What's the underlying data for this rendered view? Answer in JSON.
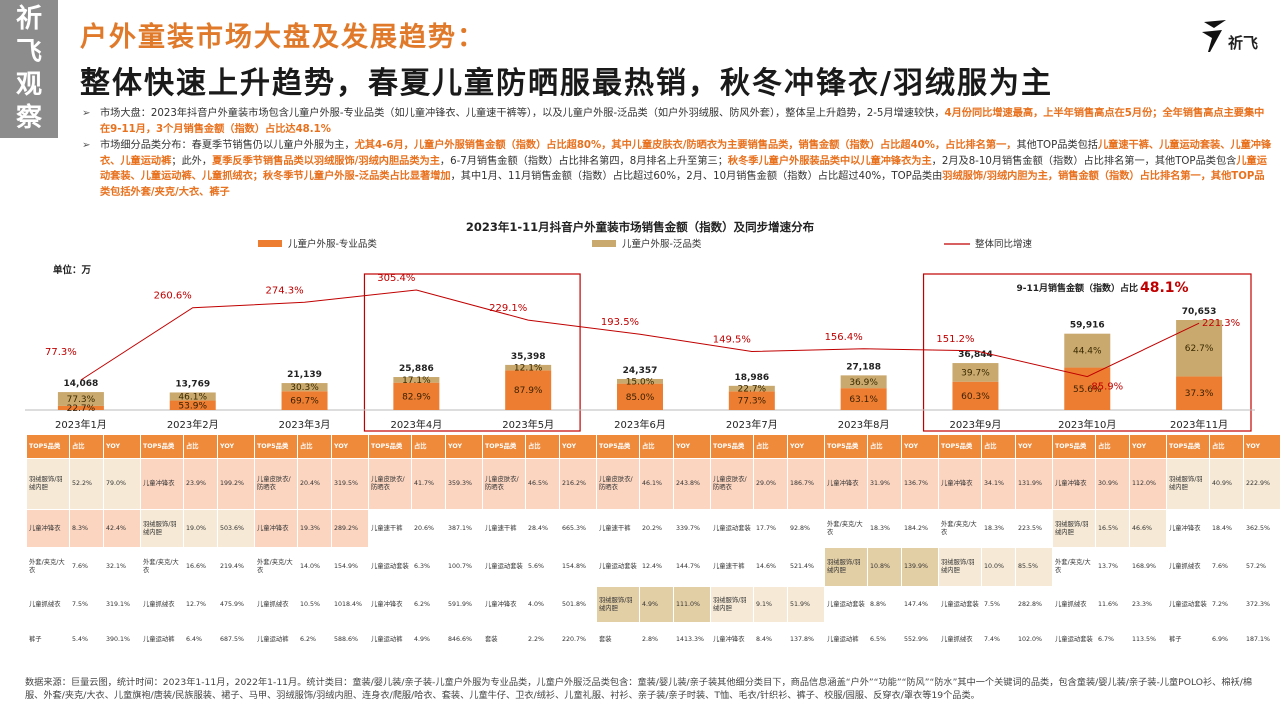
{
  "seal": [
    "祈",
    "飞",
    "观",
    "察"
  ],
  "logo_text": "祈飞",
  "title_line1": "户外童装市场大盘及发展趋势：",
  "title_line2": "整体快速上升趋势，春夏儿童防晒服最热销，秋冬冲锋衣/羽绒服为主",
  "bullets": [
    [
      {
        "t": "市场大盘：2023年抖音户外童装市场包含儿童户外服-专业品类（如儿童冲锋衣、儿童速干裤等），以及儿童户外服-泛品类（如户外羽绒服、防风外套），整体呈上升趋势，2-5月增速较快，",
        "hl": false
      },
      {
        "t": "4月份同比增速最高，上半年销售高点在5月份；全年销售高点主要集中在9-11月，3个月销售金额（指数）占比达48.1%",
        "hl": true
      }
    ],
    [
      {
        "t": "市场细分品类分布：春夏季节销售仍以儿童户外服为主，",
        "hl": false
      },
      {
        "t": "尤其4-6月，儿童户外服销售金额（指数）占比超80%，其中儿童皮肤衣/防晒衣为主要销售品类，销售金额（指数）占比超40%，占比排名第一，",
        "hl": true
      },
      {
        "t": "其他TOP品类包括",
        "hl": false
      },
      {
        "t": "儿童速干裤、儿童运动套装、儿童冲锋衣、儿童运动裤",
        "hl": true
      },
      {
        "t": "；此外，",
        "hl": false
      },
      {
        "t": "夏季反季节销售品类以羽绒服饰/羽绒内胆品类为主",
        "hl": true
      },
      {
        "t": "，6-7月销售金额（指数）占比排名第四，8月排名上升至第三；",
        "hl": false
      },
      {
        "t": "秋冬季儿童户外服装品类中以儿童冲锋衣为主",
        "hl": true
      },
      {
        "t": "，2月及8-10月销售金额（指数）占比排名第一，其他TOP品类包含",
        "hl": false
      },
      {
        "t": "儿童运动套装、儿童运动裤、儿童抓绒衣；秋冬季节儿童户外服-泛品类占比显著增加",
        "hl": true
      },
      {
        "t": "，其中1月、11月销售金额（指数）占比超过60%，2月、10月销售金额（指数）占比超过40%，TOP品类由",
        "hl": false
      },
      {
        "t": "羽绒服饰/羽绒内胆为主，销售金额（指数）占比排名第一，其他TOP品类包括外套/夹克/大衣、裤子",
        "hl": true
      }
    ]
  ],
  "chart_data": {
    "type": "bar",
    "title": "2023年1-11月抖音户外童装市场销售金额（指数）及同步增速分布",
    "unit_label": "单位：万",
    "categories": [
      "2023年1月",
      "2023年2月",
      "2023年3月",
      "2023年4月",
      "2023年5月",
      "2023年6月",
      "2023年7月",
      "2023年8月",
      "2023年9月",
      "2023年10月",
      "2023年11月"
    ],
    "totals": [
      14068,
      13769,
      21139,
      25886,
      35398,
      24357,
      18986,
      27188,
      36844,
      59916,
      70653
    ],
    "totals_labels": [
      "14,068",
      "13,769",
      "21,139",
      "25,886",
      "35,398",
      "24,357",
      "18,986",
      "27,188",
      "36,844",
      "59,916",
      "70,653"
    ],
    "series": [
      {
        "name": "儿童户外服-专业品类",
        "color": "#ed7d31",
        "share_labels": [
          "22.7%",
          "53.9%",
          "69.7%",
          "82.9%",
          "87.9%",
          "85.0%",
          "77.3%",
          "63.1%",
          "60.3%",
          "55.6%",
          "37.3%"
        ]
      },
      {
        "name": "儿童户外服-泛品类",
        "color": "#c9a96e",
        "share_labels": [
          "77.3%",
          "46.1%",
          "30.3%",
          "17.1%",
          "12.1%",
          "15.0%",
          "22.7%",
          "36.9%",
          "39.7%",
          "44.4%",
          "62.7%"
        ]
      }
    ],
    "line": {
      "name": "整体同比增速",
      "color": "#c00000",
      "values": [
        77.3,
        260.6,
        274.3,
        305.4,
        229.1,
        193.5,
        149.5,
        156.4,
        151.2,
        85.9,
        221.3
      ],
      "labels": [
        "77.3%",
        "260.6%",
        "274.3%",
        "305.4%",
        "229.1%",
        "193.5%",
        "149.5%",
        "156.4%",
        "151.2%",
        "85.9%",
        "221.3%"
      ]
    },
    "annotation_label": "9-11月销售金额（指数）占比",
    "annotation_value": "48.1%",
    "highlight_groups": [
      [
        3,
        4
      ],
      [
        8,
        9,
        10
      ]
    ]
  },
  "table": {
    "header": [
      "TOP5品类",
      "占比",
      "YOY"
    ],
    "rows": [
      [
        [
          "羽绒服饰/羽绒内胆",
          "52.2%",
          "79.0%"
        ],
        [
          "儿童冲锋衣",
          "23.9%",
          "199.2%"
        ],
        [
          "儿童皮肤衣/防晒衣",
          "20.4%",
          "319.5%"
        ],
        [
          "儿童皮肤衣/防晒衣",
          "41.7%",
          "359.3%"
        ],
        [
          "儿童皮肤衣/防晒衣",
          "46.5%",
          "216.2%"
        ],
        [
          "儿童皮肤衣/防晒衣",
          "46.1%",
          "243.8%"
        ],
        [
          "儿童皮肤衣/防晒衣",
          "29.0%",
          "186.7%"
        ],
        [
          "儿童冲锋衣",
          "31.9%",
          "136.7%"
        ],
        [
          "儿童冲锋衣",
          "34.1%",
          "131.9%"
        ],
        [
          "儿童冲锋衣",
          "30.9%",
          "112.0%"
        ],
        [
          "羽绒服饰/羽绒内胆",
          "40.9%",
          "222.9%"
        ]
      ],
      [
        [
          "儿童冲锋衣",
          "8.3%",
          "42.4%"
        ],
        [
          "羽绒服饰/羽绒内胆",
          "19.0%",
          "503.6%"
        ],
        [
          "儿童冲锋衣",
          "19.3%",
          "289.2%"
        ],
        [
          "儿童速干裤",
          "20.6%",
          "387.1%"
        ],
        [
          "儿童速干裤",
          "28.4%",
          "665.3%"
        ],
        [
          "儿童速干裤",
          "20.2%",
          "339.7%"
        ],
        [
          "儿童运动套装",
          "17.7%",
          "92.8%"
        ],
        [
          "外套/夹克/大衣",
          "18.3%",
          "184.2%"
        ],
        [
          "外套/夹克/大衣",
          "18.3%",
          "223.5%"
        ],
        [
          "羽绒服饰/羽绒内胆",
          "16.5%",
          "46.6%"
        ],
        [
          "儿童冲锋衣",
          "18.4%",
          "362.5%"
        ]
      ],
      [
        [
          "外套/夹克/大衣",
          "7.6%",
          "32.1%"
        ],
        [
          "外套/夹克/大衣",
          "16.6%",
          "219.4%"
        ],
        [
          "外套/夹克/大衣",
          "14.0%",
          "154.9%"
        ],
        [
          "儿童运动套装",
          "6.3%",
          "100.7%"
        ],
        [
          "儿童运动套装",
          "5.6%",
          "154.8%"
        ],
        [
          "儿童运动套装",
          "12.4%",
          "144.7%"
        ],
        [
          "儿童速干裤",
          "14.6%",
          "521.4%"
        ],
        [
          "羽绒服饰/羽绒内胆",
          "10.8%",
          "139.9%"
        ],
        [
          "羽绒服饰/羽绒内胆",
          "10.0%",
          "85.5%"
        ],
        [
          "外套/夹克/大衣",
          "13.7%",
          "168.9%"
        ],
        [
          "儿童抓绒衣",
          "7.6%",
          "57.2%"
        ]
      ],
      [
        [
          "儿童抓绒衣",
          "7.5%",
          "319.1%"
        ],
        [
          "儿童抓绒衣",
          "12.7%",
          "475.9%"
        ],
        [
          "儿童抓绒衣",
          "10.5%",
          "1018.4%"
        ],
        [
          "儿童冲锋衣",
          "6.2%",
          "591.9%"
        ],
        [
          "儿童冲锋衣",
          "4.0%",
          "501.8%"
        ],
        [
          "羽绒服饰/羽绒内胆",
          "4.9%",
          "111.0%"
        ],
        [
          "羽绒服饰/羽绒内胆",
          "9.1%",
          "51.9%"
        ],
        [
          "儿童运动套装",
          "8.8%",
          "147.4%"
        ],
        [
          "儿童运动套装",
          "7.5%",
          "282.8%"
        ],
        [
          "儿童抓绒衣",
          "11.6%",
          "23.3%"
        ],
        [
          "儿童运动套装",
          "7.2%",
          "372.3%"
        ]
      ],
      [
        [
          "裤子",
          "5.4%",
          "390.1%"
        ],
        [
          "儿童运动裤",
          "6.4%",
          "687.5%"
        ],
        [
          "儿童运动裤",
          "6.2%",
          "588.6%"
        ],
        [
          "儿童运动裤",
          "4.9%",
          "846.6%"
        ],
        [
          "套装",
          "2.2%",
          "220.7%"
        ],
        [
          "套装",
          "2.8%",
          "1413.3%"
        ],
        [
          "儿童冲锋衣",
          "8.4%",
          "137.8%"
        ],
        [
          "儿童运动裤",
          "6.5%",
          "552.9%"
        ],
        [
          "儿童抓绒衣",
          "7.4%",
          "102.0%"
        ],
        [
          "儿童运动套装",
          "6.7%",
          "113.5%"
        ],
        [
          "裤子",
          "6.9%",
          "187.1%"
        ]
      ]
    ]
  },
  "source_note": "数据来源：巨量云图，统计时间：2023年1-11月，2022年1-11月。统计类目：童装/婴儿装/亲子装-儿童户外服为专业品类，儿童户外服泛品类包含：童装/婴儿装/亲子装其他细分类目下，商品信息涵盖“户外”“功能”“防风”“防水”其中一个关键词的品类，包含童装/婴儿装/亲子装-儿童POLO衫、棉袄/棉服、外套/夹克/大衣、儿童旗袍/唐装/民族服装、裙子、马甲、羽绒服饰/羽绒内胆、连身衣/爬服/哈衣、套装、儿童牛仔、卫衣/绒衫、儿童礼服、衬衫、亲子装/亲子时装、T恤、毛衣/针织衫、裤子、校服/园服、反穿衣/罩衣等19个品类。"
}
